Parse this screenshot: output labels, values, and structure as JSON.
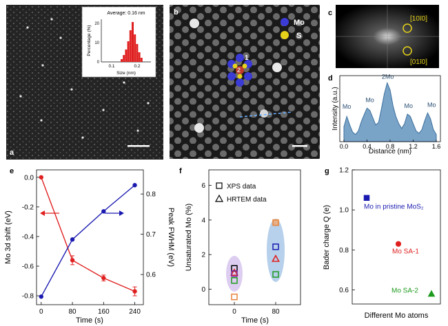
{
  "panel_letters": [
    "a",
    "b",
    "c",
    "d",
    "e",
    "f",
    "g"
  ],
  "panel_a": {
    "inset_title": "Average: 0.16 nm",
    "inset_ylabel": "Percentage (%)",
    "inset_xlabel": "Size (nm)",
    "inset_xticks": [
      "0.1",
      "0.2"
    ],
    "inset_yticks": [
      "0",
      "10",
      "20"
    ]
  },
  "panel_b": {
    "legend": [
      {
        "label": "Mo",
        "color": "#3b3bd6"
      },
      {
        "label": "S",
        "color": "#e6d21a"
      }
    ],
    "site_labels": [
      "1",
      "2"
    ]
  },
  "panel_c": {
    "spot_labels": [
      "[10ī0]",
      "[01ī0]"
    ]
  },
  "colors": {
    "red": "#e02020",
    "blue": "#1a1ab0",
    "green": "#1e9a1e",
    "orange": "#e8833a",
    "black": "#000000",
    "fill_blue": "#aac8e8",
    "fill_purple": "#d7c6ee"
  },
  "chart_data": [
    {
      "panel": "d",
      "type": "area",
      "xlabel": "Distance (nm)",
      "ylabel": "Intensity (a.u.)",
      "xticks": [
        "0.0",
        "0.4",
        "0.8",
        "1.2",
        "1.6"
      ],
      "xlim": [
        0,
        1.6
      ],
      "annotations": [
        "Mo",
        "Mo",
        "2Mo",
        "Mo",
        "Mo"
      ],
      "x": [
        0.0,
        0.05,
        0.1,
        0.15,
        0.2,
        0.25,
        0.3,
        0.35,
        0.4,
        0.45,
        0.5,
        0.55,
        0.6,
        0.65,
        0.7,
        0.75,
        0.8,
        0.85,
        0.9,
        0.95,
        1.0,
        1.05,
        1.1,
        1.15,
        1.2,
        1.25,
        1.3,
        1.35,
        1.4,
        1.45,
        1.5,
        1.55,
        1.6
      ],
      "y": [
        0.25,
        0.42,
        0.28,
        0.16,
        0.12,
        0.18,
        0.33,
        0.45,
        0.56,
        0.52,
        0.4,
        0.28,
        0.32,
        0.55,
        0.8,
        0.98,
        0.86,
        0.6,
        0.42,
        0.3,
        0.22,
        0.3,
        0.46,
        0.42,
        0.3,
        0.18,
        0.14,
        0.2,
        0.35,
        0.48,
        0.38,
        0.2,
        0.12
      ]
    },
    {
      "panel": "e",
      "type": "line",
      "xlabel": "Time (s)",
      "ylabel": "Mo 3d shift (eV)",
      "ylabel_right": "Peak FWHM (eV)",
      "x": [
        0,
        80,
        160,
        240
      ],
      "xticks": [
        "0",
        "80",
        "160",
        "240"
      ],
      "xlim": [
        -12,
        262
      ],
      "ylim": [
        -0.86,
        0.05
      ],
      "yticks": [
        "0.0",
        "-0.2",
        "-0.4",
        "-0.6",
        "-0.8"
      ],
      "ylim_right": [
        0.525,
        0.86
      ],
      "yticks_right": [
        "0.6",
        "0.7",
        "0.8"
      ],
      "series": [
        {
          "axis": "left",
          "color": "#e02020",
          "values": [
            0.0,
            -0.56,
            -0.68,
            -0.77
          ],
          "errors": [
            0,
            0.03,
            0.02,
            0.03
          ]
        },
        {
          "axis": "right",
          "color": "#1a1ab0",
          "values": [
            0.545,
            0.687,
            0.757,
            0.822
          ]
        }
      ]
    },
    {
      "panel": "f",
      "type": "scatter",
      "xlabel": "Time (s)",
      "ylabel": "Unsaturated Mo (%)",
      "xticks": [
        "0",
        "80"
      ],
      "yticks": [
        "0",
        "2",
        "4",
        "6"
      ],
      "ylim": [
        -0.9,
        6.9
      ],
      "legend": [
        "XPS data",
        "HRTEM data"
      ],
      "points": [
        {
          "x": 0,
          "y": 1.2,
          "marker": "square",
          "color": "#000000"
        },
        {
          "x": 0,
          "y": 0.95,
          "marker": "triangle",
          "color": "#e02020"
        },
        {
          "x": 0,
          "y": 0.9,
          "marker": "square",
          "color": "#7a2a9a"
        },
        {
          "x": 0,
          "y": 0.5,
          "marker": "square",
          "color": "#1e9a1e"
        },
        {
          "x": 0,
          "y": -0.45,
          "marker": "square",
          "color": "#e8833a"
        },
        {
          "x": 80,
          "y": 3.85,
          "marker": "square",
          "color": "#e8833a"
        },
        {
          "x": 80,
          "y": 2.45,
          "marker": "square",
          "color": "#1a1ab0"
        },
        {
          "x": 80,
          "y": 1.75,
          "marker": "triangle",
          "color": "#e02020"
        },
        {
          "x": 80,
          "y": 0.85,
          "marker": "square",
          "color": "#1e9a1e"
        }
      ]
    },
    {
      "panel": "g",
      "type": "scatter",
      "xlabel": "Different Mo atoms",
      "ylabel": "Bader charge Q (e)",
      "yticks": [
        "0.6",
        "0.8",
        "1.0",
        "1.2"
      ],
      "ylim": [
        0.53,
        1.2
      ],
      "points": [
        {
          "label": "Mo in pristine MoS₂",
          "y": 1.06,
          "marker": "square",
          "color": "#1a1ab0"
        },
        {
          "label": "Mo SA-1",
          "y": 0.83,
          "marker": "circle",
          "color": "#e02020"
        },
        {
          "label": "Mo SA-2",
          "y": 0.58,
          "marker": "triangle",
          "color": "#1e9a1e"
        }
      ]
    }
  ]
}
